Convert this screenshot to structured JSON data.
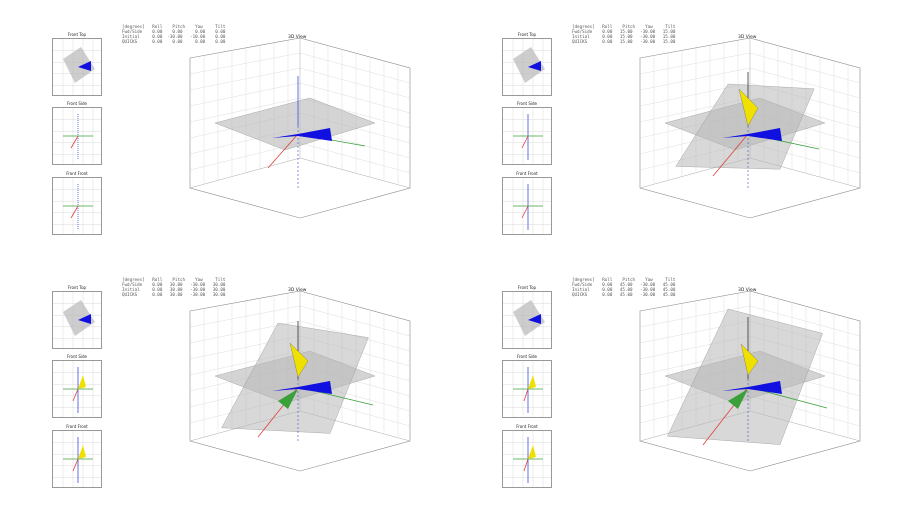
{
  "panels": [
    {
      "mini_titles": [
        "Front Top",
        "Front Side",
        "Front Front"
      ],
      "main_title": "3D View",
      "table": {
        "header": "[degrees]   Roll    Pitch    Yaw     Tilt",
        "rows": [
          "Fwd/Side    0.00    0.00     0.00    0.00",
          "Initial     0.00  -30.00   -10.00    0.00",
          "QUICKS      0.00    0.00     0.00    0.00"
        ]
      }
    },
    {
      "mini_titles": [
        "Front Top",
        "Front Side",
        "Front Front"
      ],
      "main_title": "3D View",
      "table": {
        "header": "[degrees]   Roll    Pitch    Yaw     Tilt",
        "rows": [
          "Fwd/Side    0.00   15.00   -30.00   15.00",
          "Initial     0.00   15.00   -30.00   15.00",
          "QUICKS      0.00   15.00   -30.00   15.00"
        ]
      }
    },
    {
      "mini_titles": [
        "Front Top",
        "Front Side",
        "Front Front"
      ],
      "main_title": "3D View",
      "table": {
        "header": "[degrees]   Roll    Pitch    Yaw     Tilt",
        "rows": [
          "Fwd/Side    0.00   30.00   -30.00   30.00",
          "Initial     0.00   30.00   -30.00   30.00",
          "QUICKS      0.00   30.00   -30.00   30.00"
        ]
      }
    },
    {
      "mini_titles": [
        "Front Top",
        "Front Side",
        "Front Front"
      ],
      "main_title": "3D View",
      "table": {
        "header": "[degrees]   Roll    Pitch    Yaw     Tilt",
        "rows": [
          "Fwd/Side    0.00   45.00   -30.00   45.00",
          "Initial     0.00   45.00   -30.00   45.00",
          "QUICKS      0.00   45.00   -30.00   45.00"
        ]
      }
    }
  ],
  "colors": {
    "x_axis": "#e0403a",
    "y_axis": "#3aa03a",
    "z_axis": "#3a50e0",
    "wedge": "#1010e0",
    "yellow": "#f0e000",
    "plane": "#b8b8b8",
    "grid": "#d0d0d0"
  }
}
